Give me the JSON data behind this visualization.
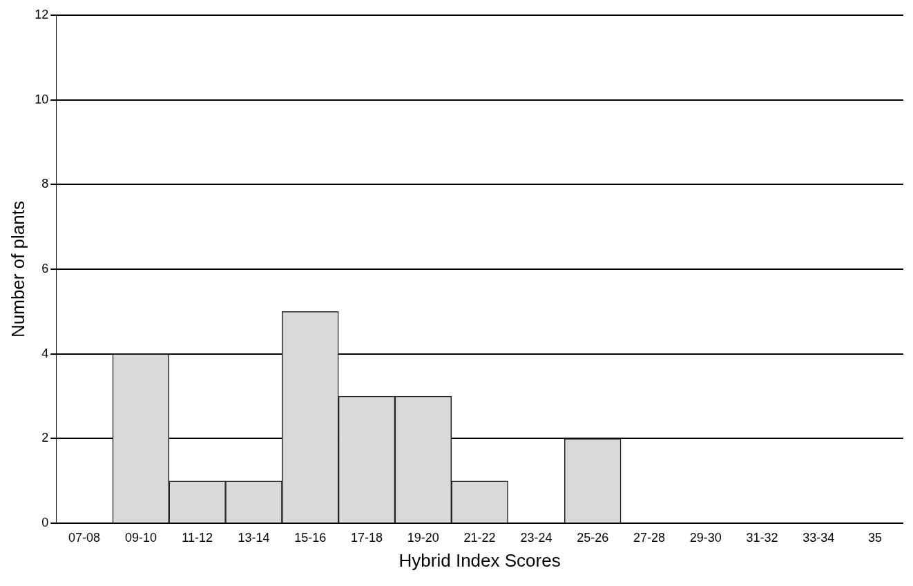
{
  "chart_data": {
    "type": "bar",
    "xlabel": "Hybrid Index Scores",
    "ylabel": "Number of plants",
    "categories": [
      "07-08",
      "09-10",
      "11-12",
      "13-14",
      "15-16",
      "17-18",
      "19-20",
      "21-22",
      "23-24",
      "25-26",
      "27-28",
      "29-30",
      "31-32",
      "33-34",
      "35"
    ],
    "values": [
      0,
      4,
      1,
      1,
      5,
      3,
      3,
      1,
      0,
      2,
      0,
      0,
      0,
      0,
      0
    ],
    "color": "#d9d9d9",
    "ylim": [
      0,
      12
    ],
    "yticks": [
      0,
      2,
      4,
      6,
      8,
      10,
      12
    ],
    "grid": "y"
  }
}
